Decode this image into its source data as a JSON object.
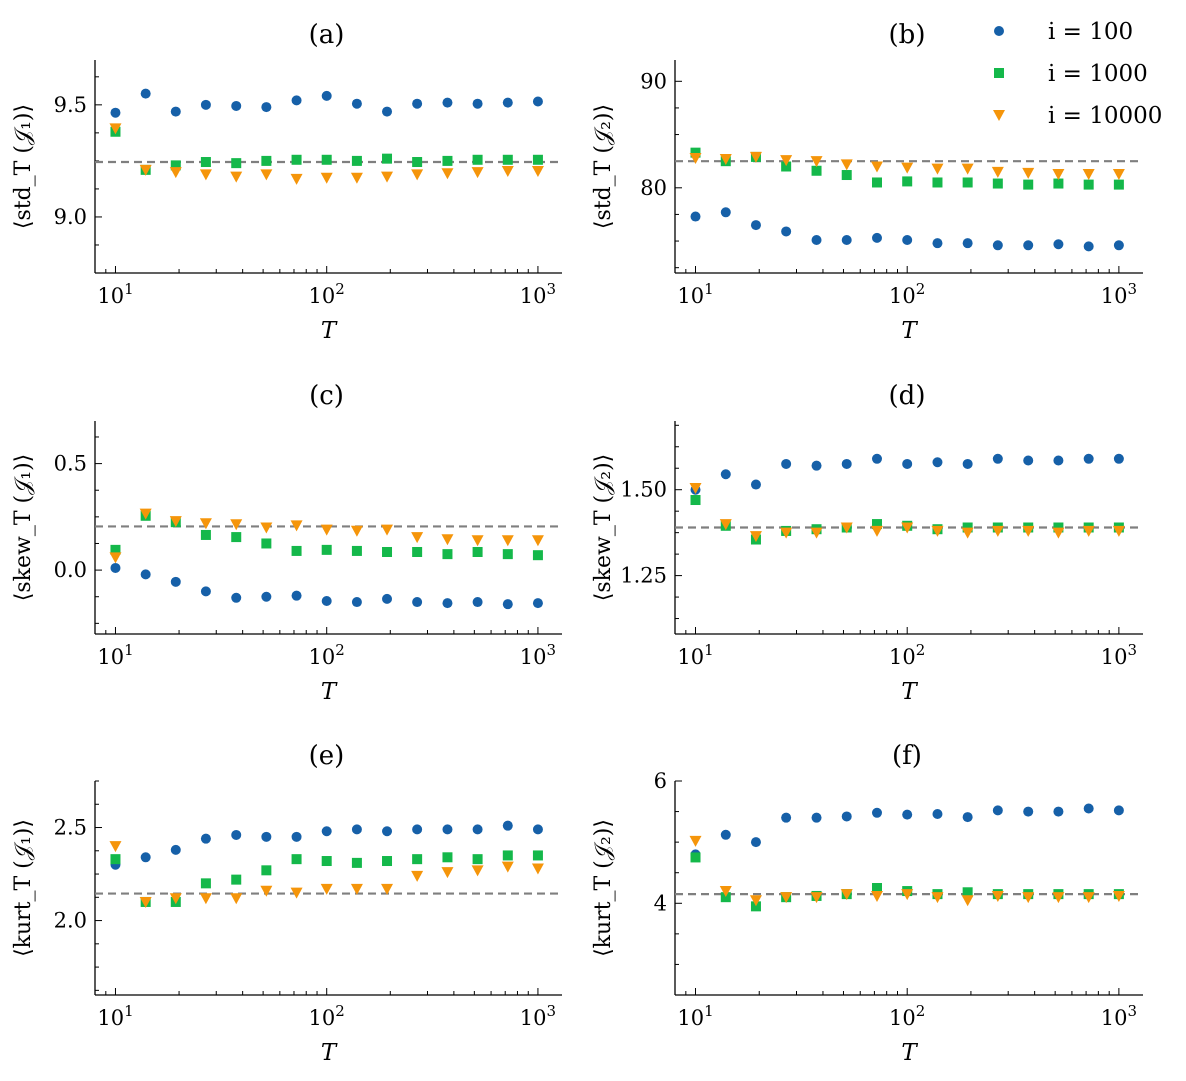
{
  "figure": {
    "legend": [
      {
        "label": "i = 100",
        "marker": "circle",
        "color": "#1660a8"
      },
      {
        "label": "i = 1000",
        "marker": "square",
        "color": "#14b84a"
      },
      {
        "label": "i = 10000",
        "marker": "triangle-down",
        "color": "#f5950a"
      }
    ],
    "legend_position": "top-right of panel (b)"
  },
  "chart_data": [
    {
      "panel": "(a)",
      "type": "scatter",
      "title": "(a)",
      "xlabel": "T",
      "ylabel": "⟨std_T (𝒥₁)⟩",
      "xscale": "log",
      "xlim": [
        8,
        1300
      ],
      "ylim": [
        8.75,
        9.7
      ],
      "xticks": [
        10,
        100,
        1000
      ],
      "xtick_labels": [
        "10",
        "10",
        "10"
      ],
      "xtick_exps": [
        "1",
        "2",
        "3"
      ],
      "yticks": [
        9.0,
        9.5
      ],
      "ytick_labels": [
        "9.0",
        "9.5"
      ],
      "hline": 9.245,
      "x": [
        10,
        13.9,
        19.3,
        26.8,
        37.3,
        51.8,
        72,
        100,
        139,
        193,
        268,
        373,
        518,
        720,
        1000
      ],
      "series": [
        {
          "name": "i = 100",
          "values": [
            9.465,
            9.55,
            9.47,
            9.5,
            9.495,
            9.49,
            9.52,
            9.54,
            9.505,
            9.47,
            9.505,
            9.51,
            9.505,
            9.51,
            9.515
          ]
        },
        {
          "name": "i = 1000",
          "values": [
            9.38,
            9.21,
            9.23,
            9.245,
            9.24,
            9.25,
            9.255,
            9.255,
            9.25,
            9.26,
            9.245,
            9.25,
            9.255,
            9.255,
            9.255
          ]
        },
        {
          "name": "i = 10000",
          "values": [
            9.395,
            9.21,
            9.2,
            9.19,
            9.18,
            9.19,
            9.17,
            9.175,
            9.175,
            9.18,
            9.19,
            9.195,
            9.2,
            9.205,
            9.205
          ]
        }
      ]
    },
    {
      "panel": "(b)",
      "type": "scatter",
      "title": "(b)",
      "xlabel": "T",
      "ylabel": "⟨std_T (𝒥₂)⟩",
      "xscale": "log",
      "xlim": [
        8,
        1300
      ],
      "ylim": [
        72,
        92
      ],
      "xticks": [
        10,
        100,
        1000
      ],
      "xtick_labels": [
        "10",
        "10",
        "10"
      ],
      "xtick_exps": [
        "1",
        "2",
        "3"
      ],
      "yticks": [
        80,
        90
      ],
      "ytick_labels": [
        "80",
        "90"
      ],
      "hline": 82.5,
      "x": [
        10,
        13.9,
        19.3,
        26.8,
        37.3,
        51.8,
        72,
        100,
        139,
        193,
        268,
        373,
        518,
        720,
        1000
      ],
      "series": [
        {
          "name": "i = 100",
          "values": [
            77.3,
            77.7,
            76.5,
            75.9,
            75.1,
            75.1,
            75.3,
            75.1,
            74.8,
            74.8,
            74.6,
            74.6,
            74.7,
            74.5,
            74.6
          ]
        },
        {
          "name": "i = 1000",
          "values": [
            83.3,
            82.5,
            82.9,
            82.0,
            81.6,
            81.2,
            80.5,
            80.6,
            80.5,
            80.5,
            80.4,
            80.3,
            80.4,
            80.3,
            80.3
          ]
        },
        {
          "name": "i = 10000",
          "values": [
            82.8,
            82.7,
            82.9,
            82.6,
            82.5,
            82.2,
            82.0,
            81.9,
            81.8,
            81.8,
            81.5,
            81.4,
            81.3,
            81.3,
            81.3
          ]
        }
      ]
    },
    {
      "panel": "(c)",
      "type": "scatter",
      "title": "(c)",
      "xlabel": "T",
      "ylabel": "⟨skew_T (𝒥₁)⟩",
      "xscale": "log",
      "xlim": [
        8,
        1300
      ],
      "ylim": [
        -0.3,
        0.7
      ],
      "xticks": [
        10,
        100,
        1000
      ],
      "xtick_labels": [
        "10",
        "10",
        "10"
      ],
      "xtick_exps": [
        "1",
        "2",
        "3"
      ],
      "yticks": [
        0.0,
        0.5
      ],
      "ytick_labels": [
        "0.0",
        "0.5"
      ],
      "hline": 0.205,
      "x": [
        10,
        13.9,
        19.3,
        26.8,
        37.3,
        51.8,
        72,
        100,
        139,
        193,
        268,
        373,
        518,
        720,
        1000
      ],
      "series": [
        {
          "name": "i = 100",
          "values": [
            0.01,
            -0.02,
            -0.055,
            -0.1,
            -0.13,
            -0.125,
            -0.12,
            -0.145,
            -0.15,
            -0.135,
            -0.15,
            -0.155,
            -0.15,
            -0.16,
            -0.155
          ]
        },
        {
          "name": "i = 1000",
          "values": [
            0.095,
            0.255,
            0.225,
            0.165,
            0.155,
            0.125,
            0.09,
            0.095,
            0.09,
            0.085,
            0.085,
            0.075,
            0.085,
            0.075,
            0.07
          ]
        },
        {
          "name": "i = 10000",
          "values": [
            0.06,
            0.265,
            0.23,
            0.22,
            0.215,
            0.2,
            0.21,
            0.19,
            0.185,
            0.19,
            0.155,
            0.145,
            0.14,
            0.14,
            0.14
          ]
        }
      ]
    },
    {
      "panel": "(d)",
      "type": "scatter",
      "title": "(d)",
      "xlabel": "T",
      "ylabel": "⟨skew_T (𝒥₂)⟩",
      "xscale": "log",
      "xlim": [
        8,
        1300
      ],
      "ylim": [
        1.08,
        1.7
      ],
      "xticks": [
        10,
        100,
        1000
      ],
      "xtick_labels": [
        "10",
        "10",
        "10"
      ],
      "xtick_exps": [
        "1",
        "2",
        "3"
      ],
      "yticks": [
        1.25,
        1.5
      ],
      "ytick_labels": [
        "1.25",
        "1.50"
      ],
      "hline": 1.39,
      "x": [
        10,
        13.9,
        19.3,
        26.8,
        37.3,
        51.8,
        72,
        100,
        139,
        193,
        268,
        373,
        518,
        720,
        1000
      ],
      "series": [
        {
          "name": "i = 100",
          "values": [
            1.5,
            1.545,
            1.515,
            1.575,
            1.57,
            1.575,
            1.59,
            1.575,
            1.58,
            1.575,
            1.59,
            1.585,
            1.585,
            1.59,
            1.59
          ]
        },
        {
          "name": "i = 1000",
          "values": [
            1.47,
            1.395,
            1.355,
            1.38,
            1.385,
            1.39,
            1.4,
            1.395,
            1.385,
            1.39,
            1.39,
            1.39,
            1.39,
            1.39,
            1.39
          ]
        },
        {
          "name": "i = 10000",
          "values": [
            1.505,
            1.4,
            1.365,
            1.375,
            1.375,
            1.39,
            1.38,
            1.39,
            1.38,
            1.375,
            1.38,
            1.38,
            1.375,
            1.38,
            1.38
          ]
        }
      ]
    },
    {
      "panel": "(e)",
      "type": "scatter",
      "title": "(e)",
      "xlabel": "T",
      "ylabel": "⟨kurt_T (𝒥₁)⟩",
      "xscale": "log",
      "xlim": [
        8,
        1300
      ],
      "ylim": [
        1.6,
        2.75
      ],
      "xticks": [
        10,
        100,
        1000
      ],
      "xtick_labels": [
        "10",
        "10",
        "10"
      ],
      "xtick_exps": [
        "1",
        "2",
        "3"
      ],
      "yticks": [
        2.0,
        2.5
      ],
      "ytick_labels": [
        "2.0",
        "2.5"
      ],
      "hline": 2.145,
      "x": [
        10,
        13.9,
        19.3,
        26.8,
        37.3,
        51.8,
        72,
        100,
        139,
        193,
        268,
        373,
        518,
        720,
        1000
      ],
      "series": [
        {
          "name": "i = 100",
          "values": [
            2.3,
            2.34,
            2.38,
            2.44,
            2.46,
            2.45,
            2.45,
            2.48,
            2.49,
            2.48,
            2.49,
            2.49,
            2.49,
            2.51,
            2.49
          ]
        },
        {
          "name": "i = 1000",
          "values": [
            2.33,
            2.1,
            2.1,
            2.2,
            2.22,
            2.27,
            2.33,
            2.32,
            2.31,
            2.32,
            2.33,
            2.34,
            2.33,
            2.35,
            2.35
          ]
        },
        {
          "name": "i = 10000",
          "values": [
            2.4,
            2.1,
            2.12,
            2.12,
            2.12,
            2.16,
            2.15,
            2.17,
            2.17,
            2.17,
            2.24,
            2.26,
            2.27,
            2.29,
            2.28
          ]
        }
      ]
    },
    {
      "panel": "(f)",
      "type": "scatter",
      "title": "(f)",
      "xlabel": "T",
      "ylabel": "⟨kurt_T (𝒥₂)⟩",
      "xscale": "log",
      "xlim": [
        8,
        1300
      ],
      "ylim": [
        2.5,
        6.0
      ],
      "xticks": [
        10,
        100,
        1000
      ],
      "xtick_labels": [
        "10",
        "10",
        "10"
      ],
      "xtick_exps": [
        "1",
        "2",
        "3"
      ],
      "yticks": [
        4,
        6
      ],
      "ytick_labels": [
        "4",
        "6"
      ],
      "hline": 4.15,
      "x": [
        10,
        13.9,
        19.3,
        26.8,
        37.3,
        51.8,
        72,
        100,
        139,
        193,
        268,
        373,
        518,
        720,
        1000
      ],
      "series": [
        {
          "name": "i = 100",
          "values": [
            4.8,
            5.12,
            5.0,
            5.4,
            5.4,
            5.42,
            5.48,
            5.45,
            5.46,
            5.41,
            5.52,
            5.5,
            5.5,
            5.55,
            5.52
          ]
        },
        {
          "name": "i = 1000",
          "values": [
            4.75,
            4.1,
            3.95,
            4.1,
            4.12,
            4.15,
            4.25,
            4.2,
            4.15,
            4.18,
            4.15,
            4.15,
            4.15,
            4.15,
            4.15
          ]
        },
        {
          "name": "i = 10000",
          "values": [
            5.02,
            4.2,
            4.05,
            4.1,
            4.1,
            4.15,
            4.12,
            4.15,
            4.1,
            4.05,
            4.12,
            4.1,
            4.1,
            4.1,
            4.12
          ]
        }
      ]
    }
  ]
}
